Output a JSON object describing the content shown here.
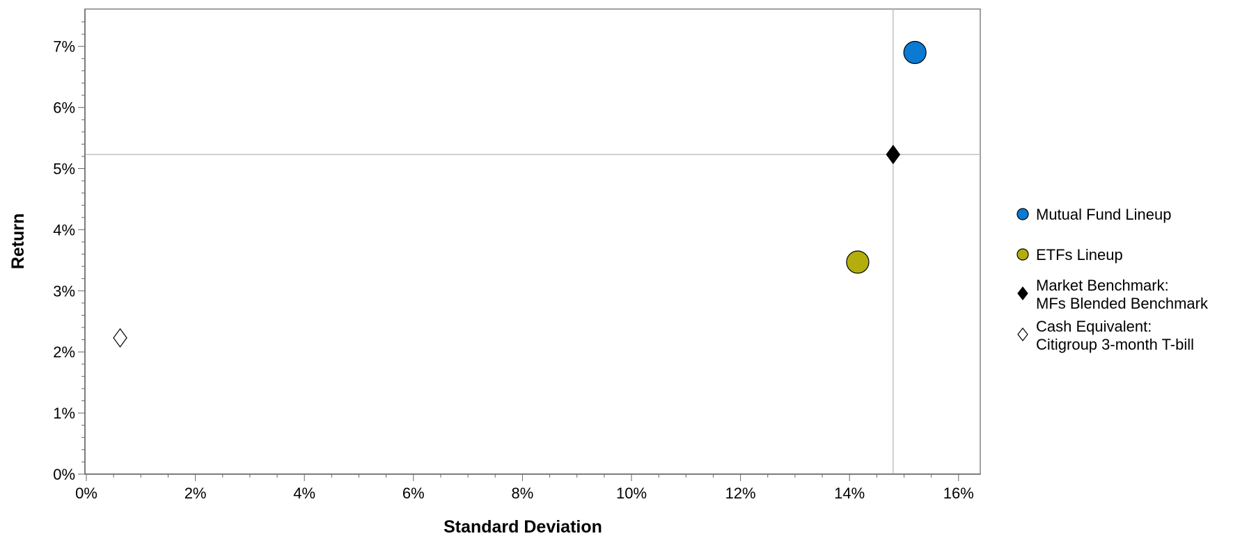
{
  "chart_data": {
    "type": "scatter",
    "xlabel": "Standard Deviation",
    "ylabel": "Return",
    "xlim": [
      0,
      16.3
    ],
    "ylim": [
      0,
      7.6
    ],
    "x_ticks": [
      "0%",
      "2%",
      "4%",
      "6%",
      "8%",
      "10%",
      "12%",
      "14%",
      "16%"
    ],
    "y_ticks": [
      "0%",
      "1%",
      "2%",
      "3%",
      "4%",
      "5%",
      "6%",
      "7%"
    ],
    "reference_lines": {
      "x": 14.8,
      "y": 5.23
    },
    "grid": false,
    "legend_position": "right",
    "series": [
      {
        "name": "Mutual Fund Lineup",
        "label_lines": [
          "Mutual Fund Lineup"
        ],
        "marker": "circle",
        "size": "large",
        "color": "#0A7AD2",
        "points": [
          {
            "x": 15.2,
            "y": 6.9
          }
        ]
      },
      {
        "name": "ETFs Lineup",
        "label_lines": [
          "ETFs Lineup"
        ],
        "marker": "circle",
        "size": "large",
        "color": "#B3AE0C",
        "points": [
          {
            "x": 14.15,
            "y": 3.47
          }
        ]
      },
      {
        "name": "Market Benchmark: MFs Blended Benchmark",
        "label_lines": [
          "Market Benchmark:",
          "MFs Blended Benchmark"
        ],
        "marker": "diamond",
        "size": "medium",
        "color": "#000000",
        "points": [
          {
            "x": 14.8,
            "y": 5.23
          }
        ]
      },
      {
        "name": "Cash Equivalent: Citigroup 3-month T-bill",
        "label_lines": [
          "Cash Equivalent:",
          "Citigroup 3-month T-bill"
        ],
        "marker": "diamond",
        "size": "medium",
        "color": "#FFFFFF",
        "points": [
          {
            "x": 0.62,
            "y": 2.23
          }
        ]
      }
    ]
  }
}
